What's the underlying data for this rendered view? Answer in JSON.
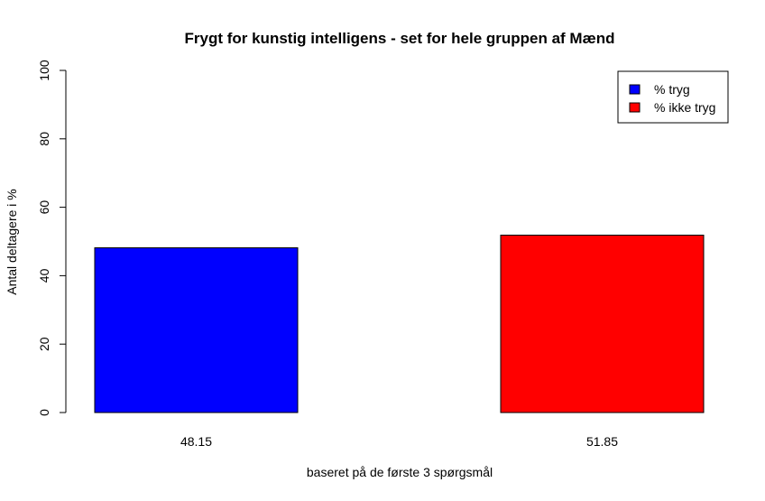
{
  "chart_data": {
    "type": "bar",
    "title": "Frygt for kunstig intelligens - set for hele gruppen af Mænd",
    "xlabel": "baseret på de første 3 spørgsmål",
    "ylabel": "Antal deltagere i %",
    "ylim": [
      0,
      100
    ],
    "yticks": [
      "0",
      "20",
      "40",
      "60",
      "80",
      "100"
    ],
    "categories": [
      "48.15",
      "51.85"
    ],
    "values": [
      48.15,
      51.85
    ],
    "colors": [
      "#0000ff",
      "#ff0000"
    ],
    "grid": false,
    "legend": {
      "position": "top-right",
      "entries": [
        {
          "label": "% tryg",
          "color": "#0000ff"
        },
        {
          "label": "% ikke tryg",
          "color": "#ff0000"
        }
      ]
    }
  }
}
